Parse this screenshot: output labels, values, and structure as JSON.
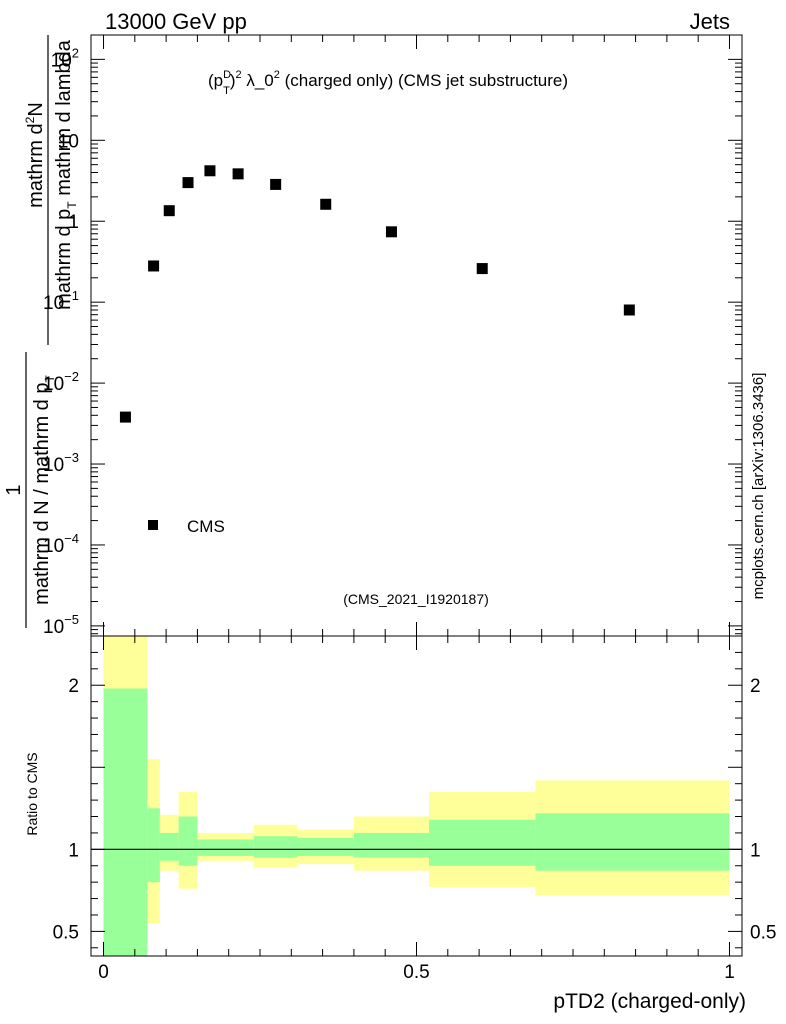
{
  "header": {
    "left": "13000 GeV pp",
    "right": "Jets"
  },
  "chart_data": {
    "type": "scatter",
    "title_base": "(p",
    "title_sup1": "D",
    "title_sub1": "T",
    "title_mid": ")",
    "title_sup2": "2",
    "title_lambda": " λ_0",
    "title_sup3": "2",
    "title_rest": " (charged only) (CMS jet substructure)",
    "analysis_id": "(CMS_2021_I1920187)",
    "watermark": "mcplots.cern.ch [arXiv:1306.3436]",
    "ylabel_main_top": "mathrm d",
    "ylabel_main_top_sup": "2",
    "ylabel_main_top_rest": "N",
    "ylabel_main_bottom": "mathrm d p",
    "ylabel_main_bottom_sub": "T",
    "ylabel_main_bottom_rest": " mathrm d lambda",
    "ylabel_left_num": "1",
    "ylabel_left_den": "mathrm d N / mathrm d p",
    "ylabel_left_den_sub": "T",
    "ylabel_ratio": "Ratio to CMS",
    "xlabel": "pTD2 (charged-only)",
    "legend": {
      "marker": "square",
      "label": "CMS",
      "placement": "bottom-left"
    },
    "main": {
      "yscale": "log",
      "ylim": [
        7.5e-06,
        200
      ],
      "yticks": [
        {
          "base": "10",
          "exp": "2",
          "value": 100
        },
        {
          "base": "10",
          "exp": "",
          "value": 10
        },
        {
          "base": "1",
          "exp": "",
          "value": 1
        },
        {
          "base": "10",
          "exp": "−1",
          "value": 0.1
        },
        {
          "base": "10",
          "exp": "−2",
          "value": 0.01
        },
        {
          "base": "10",
          "exp": "−3",
          "value": 0.001
        },
        {
          "base": "10",
          "exp": "−4",
          "value": 0.0001
        },
        {
          "base": "10",
          "exp": "−5",
          "value": 1e-05
        }
      ]
    },
    "xlim": [
      -0.02,
      1.02
    ],
    "xticks": [
      {
        "label": "0",
        "value": 0
      },
      {
        "label": "0.5",
        "value": 0.5
      },
      {
        "label": "1",
        "value": 1
      }
    ],
    "series": [
      {
        "name": "CMS",
        "x": [
          0.035,
          0.08,
          0.105,
          0.135,
          0.17,
          0.215,
          0.275,
          0.355,
          0.46,
          0.605,
          0.84
        ],
        "y": [
          0.0038,
          0.28,
          1.35,
          3.0,
          4.2,
          3.85,
          2.85,
          1.62,
          0.74,
          0.26,
          0.08
        ]
      }
    ],
    "ratio": {
      "ylim": [
        0.35,
        2.3
      ],
      "yticks": [
        {
          "label": "2",
          "value": 2
        },
        {
          "label": "1",
          "value": 1
        },
        {
          "label": "0.5",
          "value": 0.5
        }
      ],
      "reference": 1,
      "bands": [
        {
          "x0": 0.0,
          "x1": 0.07,
          "inner": [
            0.0,
            1.98
          ],
          "outer": [
            0.0,
            2.5
          ]
        },
        {
          "x0": 0.07,
          "x1": 0.09,
          "inner": [
            0.8,
            1.25
          ],
          "outer": [
            0.55,
            1.55
          ]
        },
        {
          "x0": 0.09,
          "x1": 0.12,
          "inner": [
            0.93,
            1.1
          ],
          "outer": [
            0.87,
            1.21
          ]
        },
        {
          "x0": 0.12,
          "x1": 0.15,
          "inner": [
            0.9,
            1.2
          ],
          "outer": [
            0.76,
            1.35
          ]
        },
        {
          "x0": 0.15,
          "x1": 0.24,
          "inner": [
            0.96,
            1.06
          ],
          "outer": [
            0.93,
            1.1
          ]
        },
        {
          "x0": 0.24,
          "x1": 0.31,
          "inner": [
            0.95,
            1.08
          ],
          "outer": [
            0.89,
            1.15
          ]
        },
        {
          "x0": 0.31,
          "x1": 0.4,
          "inner": [
            0.96,
            1.07
          ],
          "outer": [
            0.91,
            1.12
          ]
        },
        {
          "x0": 0.4,
          "x1": 0.52,
          "inner": [
            0.95,
            1.1
          ],
          "outer": [
            0.87,
            1.2
          ]
        },
        {
          "x0": 0.52,
          "x1": 0.69,
          "inner": [
            0.9,
            1.18
          ],
          "outer": [
            0.77,
            1.35
          ]
        },
        {
          "x0": 0.69,
          "x1": 1.0,
          "inner": [
            0.87,
            1.22
          ],
          "outer": [
            0.72,
            1.42
          ]
        }
      ]
    },
    "colors": {
      "marker": "#000000",
      "inner_band": "#99ff99",
      "outer_band": "#ffff99",
      "watermark": "#808080",
      "analysis_id": "#999999"
    }
  }
}
